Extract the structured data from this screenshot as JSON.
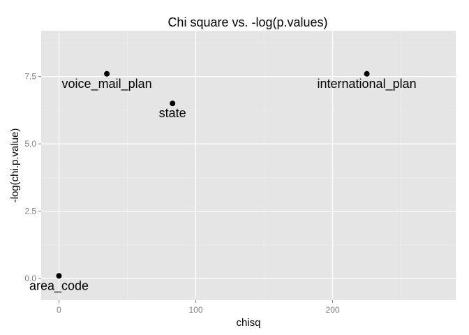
{
  "chart_data": {
    "type": "scatter",
    "title": "Chi square vs. -log(p.values)",
    "xlabel": "chisq",
    "ylabel": "-log(chi.p.value)",
    "xlim": [
      -13,
      290
    ],
    "ylim": [
      -0.8,
      9.2
    ],
    "xticks": [
      0,
      100,
      200
    ],
    "xtick_labels": [
      "0",
      "100",
      "200"
    ],
    "yticks": [
      0,
      2.5,
      5,
      7.5
    ],
    "ytick_labels": [
      "0.0",
      "2.5",
      "5.0",
      "7.5"
    ],
    "grid": true,
    "points": [
      {
        "label": "voice_mail_plan",
        "x": 35,
        "y": 7.6
      },
      {
        "label": "international_plan",
        "x": 225,
        "y": 7.6
      },
      {
        "label": "state",
        "x": 83,
        "y": 6.5
      },
      {
        "label": "area_code",
        "x": 0,
        "y": 0.1
      }
    ]
  }
}
